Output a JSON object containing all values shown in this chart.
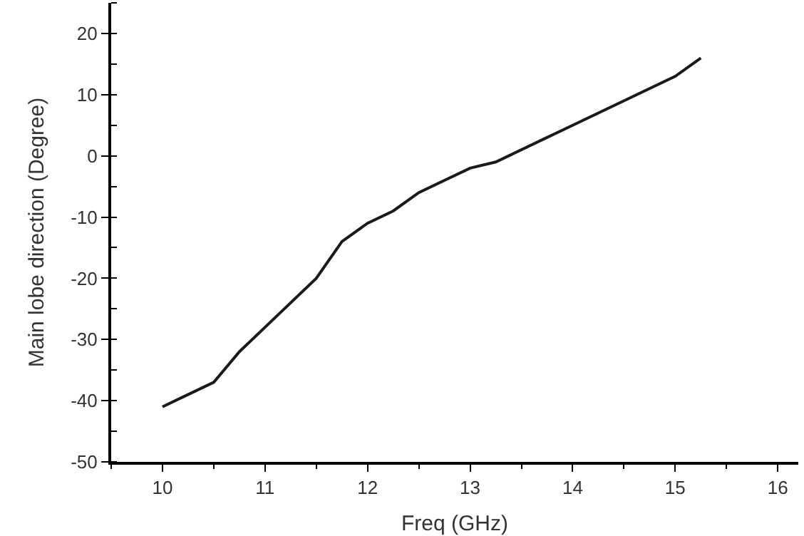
{
  "chart_data": {
    "type": "line",
    "xlabel": "Freq (GHz)",
    "ylabel": "Main lobe direction (Degree)",
    "x": [
      10,
      10.5,
      10.75,
      11,
      11.5,
      11.75,
      12,
      12.25,
      12.5,
      13,
      13.25,
      14,
      15,
      15.25
    ],
    "series": [
      {
        "color": "#1a1a1a",
        "values": [
          -41,
          -37,
          -32,
          -28,
          -20,
          -14,
          -11,
          -9,
          -6,
          -2,
          -1,
          5,
          13,
          16
        ]
      }
    ],
    "xlim": [
      9.5,
      16.2
    ],
    "xticks": [
      10,
      11,
      12,
      13,
      14,
      15,
      16
    ],
    "ylim": [
      -50,
      25
    ],
    "yticks": [
      -50,
      -40,
      -30,
      -20,
      -10,
      0,
      10,
      20
    ],
    "marker": "none",
    "line_style": "solid"
  }
}
